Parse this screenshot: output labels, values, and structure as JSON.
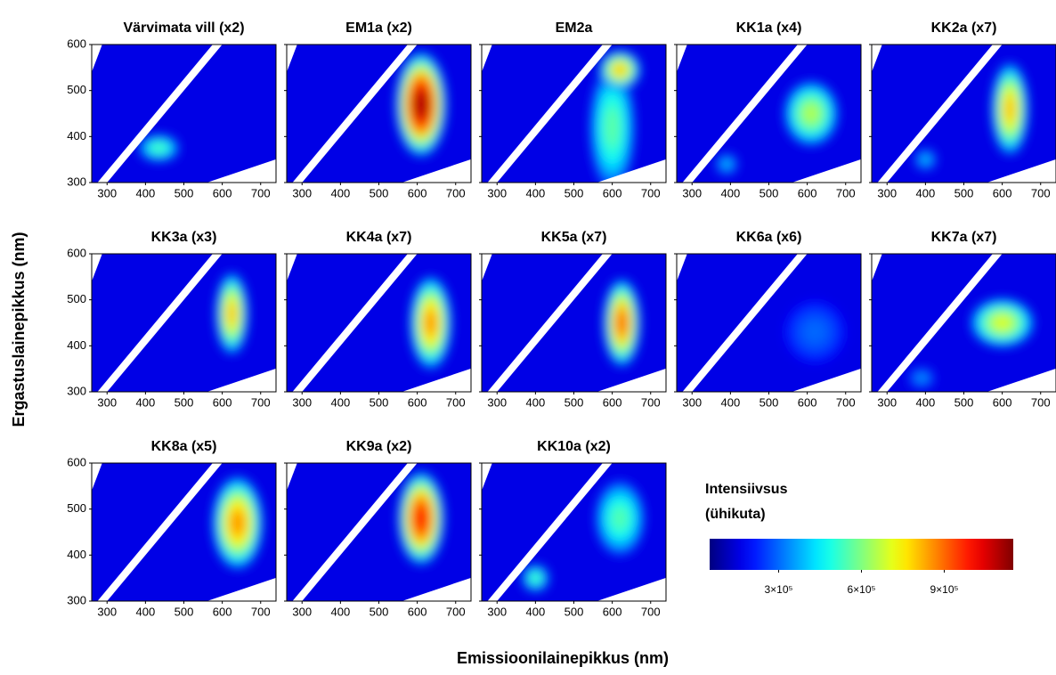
{
  "chart_data": {
    "type": "heatmap",
    "xlabel": "Emissioonilainepikkus (nm)",
    "ylabel": "Ergastuslainepikkus (nm)",
    "xlim": [
      260,
      740
    ],
    "xticks": [
      300,
      400,
      500,
      600,
      700
    ],
    "ylim": [
      300,
      600
    ],
    "yticks": [
      300,
      400,
      500,
      600
    ],
    "colorbar": {
      "title": "Intensiivsus",
      "subtitle": "(ühikuta)",
      "lim": [
        50000,
        1150000
      ],
      "ticks": [
        {
          "value": 300000,
          "label": "3×10⁵"
        },
        {
          "value": 600000,
          "label": "6×10⁵"
        },
        {
          "value": 900000,
          "label": "9×10⁵"
        }
      ]
    },
    "panels": [
      {
        "title": "Värvimata vill (x2)",
        "peaks": [
          {
            "x": 435,
            "y": 375,
            "value": 550000,
            "rx": 45,
            "ry": 25
          }
        ]
      },
      {
        "title": "EM1a (x2)",
        "peaks": [
          {
            "x": 610,
            "y": 470,
            "value": 1100000,
            "rx": 55,
            "ry": 95
          }
        ]
      },
      {
        "title": "EM2a",
        "peaks": [
          {
            "x": 600,
            "y": 420,
            "value": 560000,
            "rx": 50,
            "ry": 120
          },
          {
            "x": 620,
            "y": 545,
            "value": 800000,
            "rx": 45,
            "ry": 35
          }
        ]
      },
      {
        "title": "KK1a (x4)",
        "peaks": [
          {
            "x": 610,
            "y": 450,
            "value": 650000,
            "rx": 60,
            "ry": 60
          },
          {
            "x": 390,
            "y": 340,
            "value": 400000,
            "rx": 25,
            "ry": 20
          }
        ]
      },
      {
        "title": "KK2a (x7)",
        "peaks": [
          {
            "x": 620,
            "y": 460,
            "value": 800000,
            "rx": 40,
            "ry": 85
          },
          {
            "x": 400,
            "y": 350,
            "value": 400000,
            "rx": 25,
            "ry": 20
          }
        ]
      },
      {
        "title": "KK3a (x3)",
        "peaks": [
          {
            "x": 625,
            "y": 470,
            "value": 800000,
            "rx": 35,
            "ry": 75
          }
        ]
      },
      {
        "title": "KK4a (x7)",
        "peaks": [
          {
            "x": 635,
            "y": 450,
            "value": 850000,
            "rx": 45,
            "ry": 85
          }
        ]
      },
      {
        "title": "KK5a (x7)",
        "peaks": [
          {
            "x": 625,
            "y": 450,
            "value": 900000,
            "rx": 40,
            "ry": 80
          }
        ]
      },
      {
        "title": "KK6a (x6)",
        "peaks": [
          {
            "x": 620,
            "y": 430,
            "value": 300000,
            "rx": 70,
            "ry": 60
          }
        ]
      },
      {
        "title": "KK7a (x7)",
        "peaks": [
          {
            "x": 600,
            "y": 450,
            "value": 700000,
            "rx": 70,
            "ry": 45
          },
          {
            "x": 390,
            "y": 330,
            "value": 350000,
            "rx": 30,
            "ry": 20
          }
        ]
      },
      {
        "title": "KK8a (x5)",
        "peaks": [
          {
            "x": 640,
            "y": 470,
            "value": 850000,
            "rx": 55,
            "ry": 85
          }
        ]
      },
      {
        "title": "KK9a (x2)",
        "peaks": [
          {
            "x": 610,
            "y": 480,
            "value": 1000000,
            "rx": 50,
            "ry": 85
          }
        ]
      },
      {
        "title": "KK10a (x2)",
        "peaks": [
          {
            "x": 620,
            "y": 480,
            "value": 550000,
            "rx": 55,
            "ry": 70
          },
          {
            "x": 400,
            "y": 350,
            "value": 550000,
            "rx": 30,
            "ry": 25
          }
        ]
      }
    ]
  }
}
